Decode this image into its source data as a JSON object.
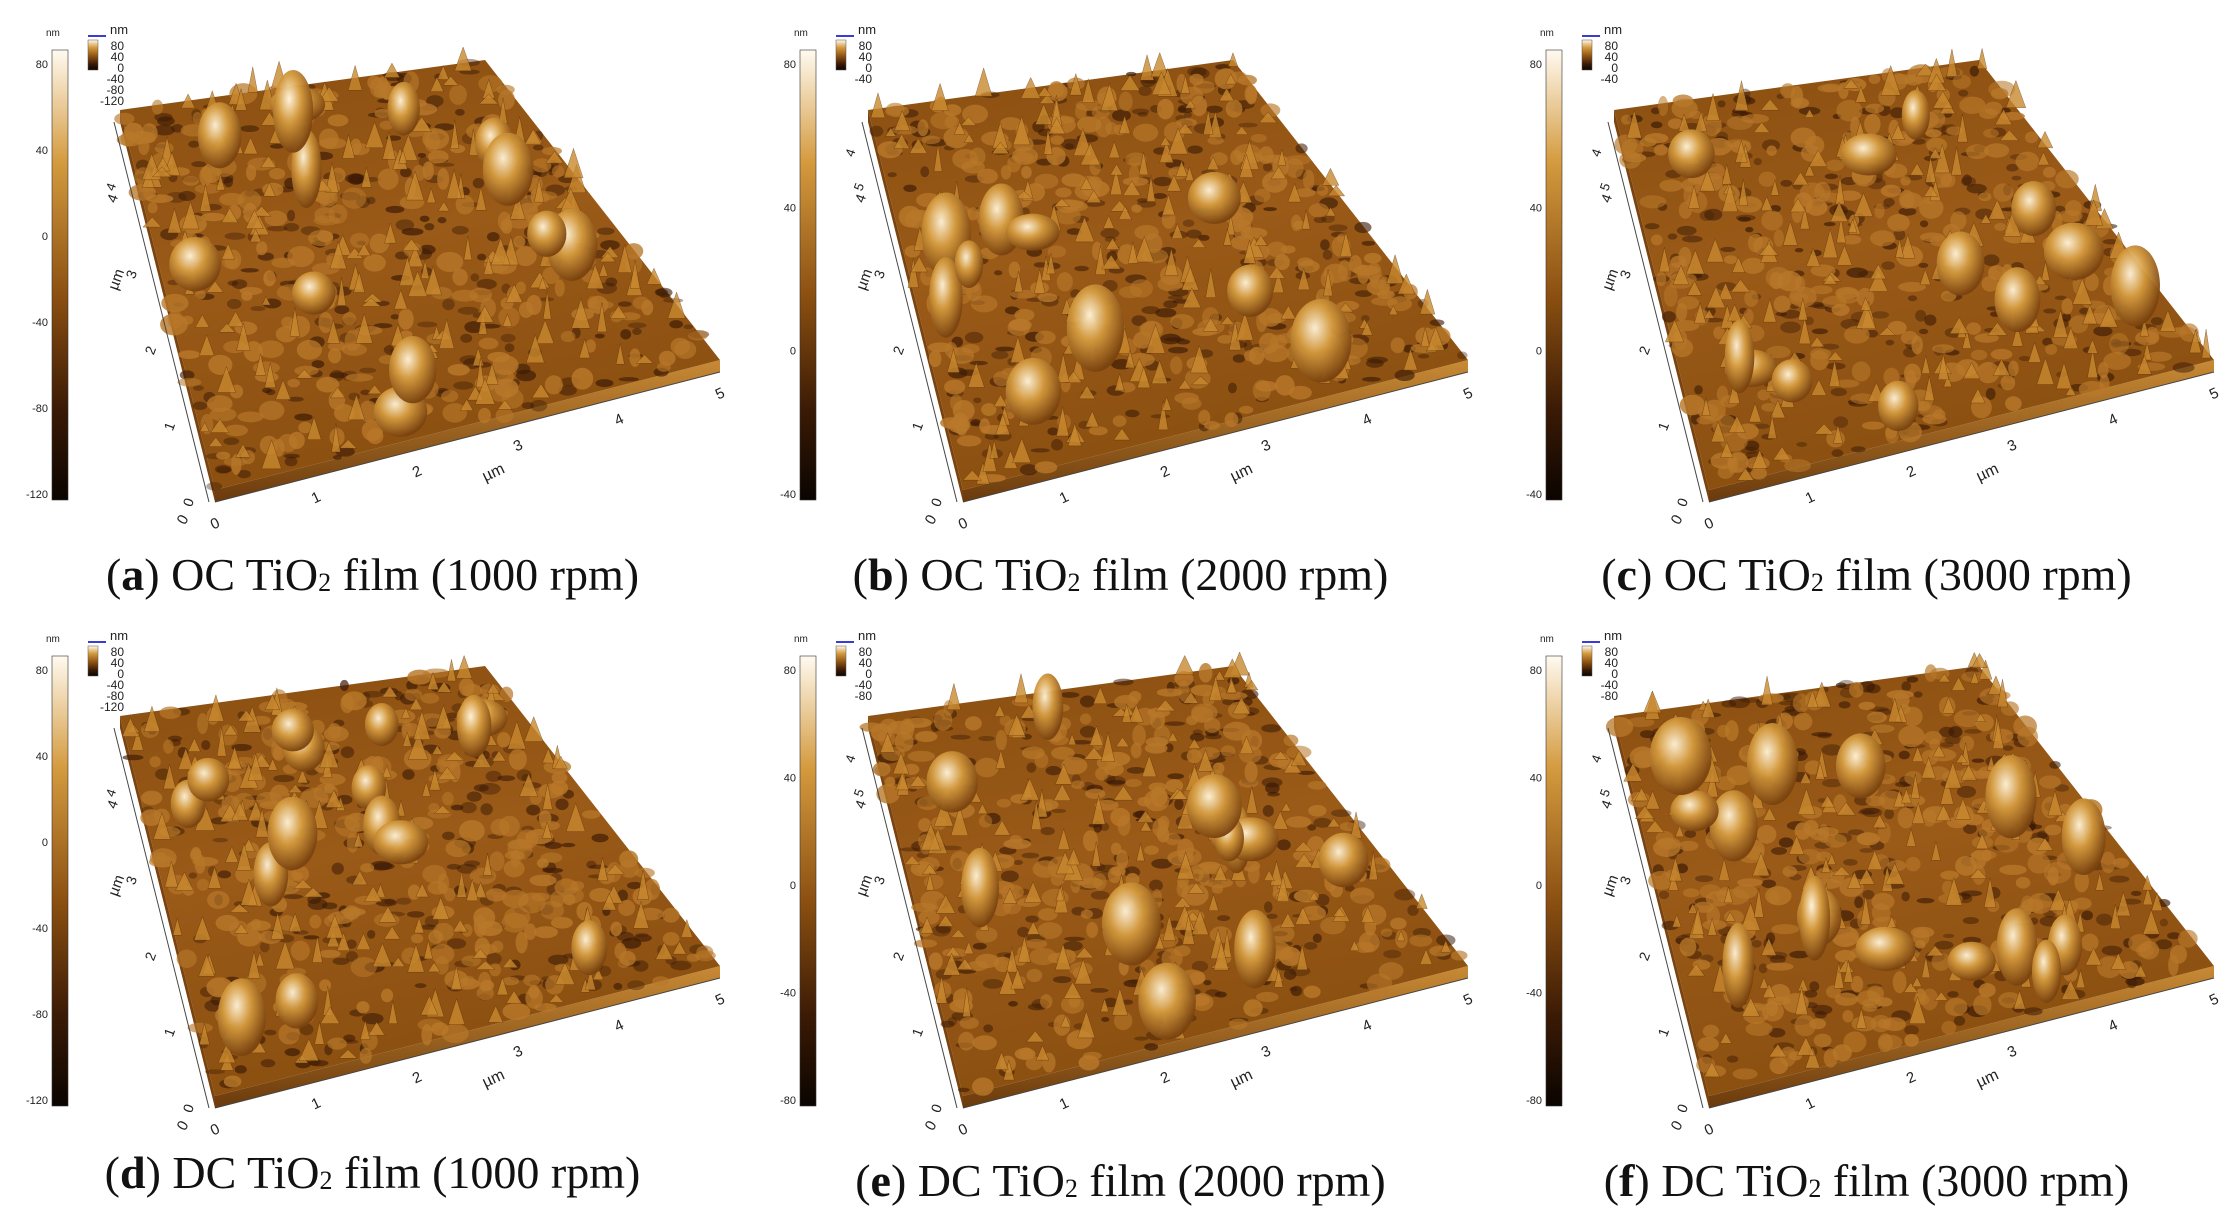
{
  "figure": {
    "panels": [
      {
        "id": "a",
        "letter": "a",
        "caption_prefix": "OC TiO",
        "caption_sub": "2",
        "caption_suffix": " film (1000 rpm)",
        "colorbar": {
          "unit": "nm",
          "ticks": [
            "80",
            "40",
            "0",
            "-40",
            "-80",
            "-120"
          ]
        },
        "inset_ticks": [
          "80",
          "40",
          "0",
          "-40",
          "-80",
          "-120"
        ],
        "y_axis": {
          "label": "µm",
          "ticks": [
            "0",
            "1",
            "2",
            "3",
            "4"
          ]
        },
        "x_axis": {
          "label": "µm",
          "ticks": [
            "0",
            "1",
            "2",
            "3",
            "4",
            "5"
          ]
        },
        "z_ticks": [
          "4"
        ]
      },
      {
        "id": "b",
        "letter": "b",
        "caption_prefix": "OC TiO",
        "caption_sub": "2",
        "caption_suffix": " film (2000 rpm)",
        "colorbar": {
          "unit": "nm",
          "ticks": [
            "80",
            "40",
            "0",
            "-40"
          ]
        },
        "inset_ticks": [
          "80",
          "40",
          "0",
          "-40"
        ],
        "y_axis": {
          "label": "µm",
          "ticks": [
            "0",
            "1",
            "2",
            "3",
            "4"
          ]
        },
        "x_axis": {
          "label": "µm",
          "ticks": [
            "0",
            "1",
            "2",
            "3",
            "4",
            "5"
          ]
        },
        "z_ticks": [
          "5",
          "4"
        ]
      },
      {
        "id": "c",
        "letter": "c",
        "caption_prefix": "OC TiO",
        "caption_sub": "2",
        "caption_suffix": " film (3000 rpm)",
        "colorbar": {
          "unit": "nm",
          "ticks": [
            "80",
            "40",
            "0",
            "-40"
          ]
        },
        "inset_ticks": [
          "80",
          "40",
          "0",
          "-40"
        ],
        "y_axis": {
          "label": "µm",
          "ticks": [
            "0",
            "1",
            "2",
            "3",
            "4"
          ]
        },
        "x_axis": {
          "label": "µm",
          "ticks": [
            "0",
            "1",
            "2",
            "3",
            "4",
            "5"
          ]
        },
        "z_ticks": [
          "5",
          "4"
        ]
      },
      {
        "id": "d",
        "letter": "d",
        "caption_prefix": "DC TiO",
        "caption_sub": "2",
        "caption_suffix": " film (1000 rpm)",
        "colorbar": {
          "unit": "nm",
          "ticks": [
            "80",
            "40",
            "0",
            "-40",
            "-80",
            "-120"
          ]
        },
        "inset_ticks": [
          "80",
          "40",
          "0",
          "-40",
          "-80",
          "-120"
        ],
        "y_axis": {
          "label": "µm",
          "ticks": [
            "0",
            "1",
            "2",
            "3",
            "4"
          ]
        },
        "x_axis": {
          "label": "µm",
          "ticks": [
            "0",
            "1",
            "2",
            "3",
            "4",
            "5"
          ]
        },
        "z_ticks": [
          "4"
        ]
      },
      {
        "id": "e",
        "letter": "e",
        "caption_prefix": "DC TiO",
        "caption_sub": "2",
        "caption_suffix": " film (2000 rpm)",
        "colorbar": {
          "unit": "nm",
          "ticks": [
            "80",
            "40",
            "0",
            "-40",
            "-80"
          ]
        },
        "inset_ticks": [
          "80",
          "40",
          "0",
          "-40",
          "-80"
        ],
        "y_axis": {
          "label": "µm",
          "ticks": [
            "0",
            "1",
            "2",
            "3",
            "4"
          ]
        },
        "x_axis": {
          "label": "µm",
          "ticks": [
            "0",
            "1",
            "2",
            "3",
            "4",
            "5"
          ]
        },
        "z_ticks": [
          "5",
          "4"
        ]
      },
      {
        "id": "f",
        "letter": "f",
        "caption_prefix": "DC TiO",
        "caption_sub": "2",
        "caption_suffix": " film (3000 rpm)",
        "colorbar": {
          "unit": "nm",
          "ticks": [
            "80",
            "40",
            "0",
            "-40",
            "-80"
          ]
        },
        "inset_ticks": [
          "80",
          "40",
          "0",
          "-40",
          "-80"
        ],
        "y_axis": {
          "label": "µm",
          "ticks": [
            "0",
            "1",
            "2",
            "3",
            "4"
          ]
        },
        "x_axis": {
          "label": "µm",
          "ticks": [
            "0",
            "1",
            "2",
            "3",
            "4",
            "5"
          ]
        },
        "z_ticks": [
          "5",
          "4"
        ]
      }
    ],
    "colors": {
      "surface_dark": "#3b1a05",
      "surface_mid": "#8a4f10",
      "surface_light": "#d49a3e",
      "surface_highlight": "#fff4dc",
      "colorbar_top": "#fffaf0",
      "colorbar_bottom": "#0a0400",
      "inset_marker": "#3b3bd6"
    }
  }
}
